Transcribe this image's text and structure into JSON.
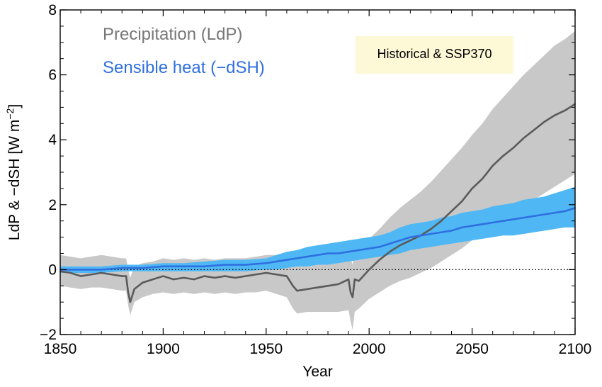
{
  "chart_data": {
    "type": "line",
    "title": "",
    "xlabel": "Year",
    "ylabel": "LdP & −dSH [W m⁻²]",
    "ylabel_parts": {
      "main": "LdP & −dSH [W m",
      "exponent": "−2",
      "close": "]"
    },
    "xlim": [
      1850,
      2100
    ],
    "ylim": [
      -2,
      8
    ],
    "x_ticks": [
      1850,
      1900,
      1950,
      2000,
      2050,
      2100
    ],
    "x_tick_labels": [
      "1850",
      "1900",
      "1950",
      "2000",
      "2050",
      "2100"
    ],
    "y_ticks": [
      -2,
      0,
      2,
      4,
      6,
      8
    ],
    "y_tick_labels": [
      "−2",
      "0",
      "2",
      "4",
      "6",
      "8"
    ],
    "grid": false,
    "reference_line": {
      "y": 0,
      "style": "dotted"
    },
    "annotation": "Historical & SSP370",
    "legend": [
      {
        "label": "Precipitation (LdP)",
        "color": "#777777"
      },
      {
        "label": "Sensible heat (−dSH)",
        "color": "#2f6fe0"
      }
    ],
    "series": [
      {
        "name": "Precipitation (LdP)",
        "line_color": "#5a5a5a",
        "band_color": "#c8c8c8",
        "x": [
          1850,
          1855,
          1860,
          1865,
          1870,
          1875,
          1880,
          1882,
          1883,
          1884,
          1886,
          1890,
          1895,
          1900,
          1905,
          1910,
          1915,
          1920,
          1925,
          1930,
          1935,
          1940,
          1945,
          1950,
          1955,
          1960,
          1963,
          1965,
          1970,
          1975,
          1980,
          1985,
          1990,
          1991,
          1992,
          1993,
          1995,
          2000,
          2005,
          2010,
          2015,
          2020,
          2025,
          2030,
          2035,
          2040,
          2045,
          2050,
          2055,
          2060,
          2065,
          2070,
          2075,
          2080,
          2085,
          2090,
          2095,
          2100
        ],
        "values": [
          -0.05,
          -0.1,
          -0.2,
          -0.15,
          -0.1,
          -0.15,
          -0.2,
          -0.2,
          -0.7,
          -1.0,
          -0.6,
          -0.4,
          -0.3,
          -0.2,
          -0.3,
          -0.25,
          -0.3,
          -0.2,
          -0.25,
          -0.2,
          -0.25,
          -0.2,
          -0.15,
          -0.1,
          -0.15,
          -0.2,
          -0.5,
          -0.65,
          -0.6,
          -0.55,
          -0.5,
          -0.45,
          -0.3,
          -0.7,
          -0.85,
          -0.3,
          -0.35,
          0.0,
          0.3,
          0.55,
          0.75,
          0.9,
          1.05,
          1.25,
          1.5,
          1.8,
          2.1,
          2.5,
          2.8,
          3.2,
          3.5,
          3.75,
          4.05,
          4.3,
          4.55,
          4.75,
          4.9,
          5.1
        ],
        "lower": [
          -0.5,
          -0.55,
          -0.6,
          -0.55,
          -0.55,
          -0.6,
          -0.65,
          -0.65,
          -1.1,
          -1.4,
          -1.0,
          -0.85,
          -0.75,
          -0.7,
          -0.75,
          -0.7,
          -0.75,
          -0.7,
          -0.75,
          -0.7,
          -0.75,
          -0.7,
          -0.7,
          -0.65,
          -0.75,
          -0.85,
          -1.2,
          -1.35,
          -1.3,
          -1.3,
          -1.3,
          -1.3,
          -1.25,
          -1.6,
          -1.85,
          -1.3,
          -1.2,
          -0.9,
          -0.7,
          -0.5,
          -0.35,
          -0.25,
          -0.1,
          0.05,
          0.25,
          0.45,
          0.65,
          0.9,
          1.1,
          1.35,
          1.55,
          1.75,
          1.95,
          2.15,
          2.35,
          2.55,
          2.75,
          2.95
        ],
        "upper": [
          0.45,
          0.4,
          0.35,
          0.4,
          0.45,
          0.4,
          0.35,
          0.35,
          0.0,
          -0.25,
          0.1,
          0.2,
          0.25,
          0.35,
          0.3,
          0.35,
          0.3,
          0.35,
          0.3,
          0.35,
          0.35,
          0.35,
          0.4,
          0.45,
          0.45,
          0.45,
          0.25,
          0.1,
          0.15,
          0.2,
          0.3,
          0.35,
          0.6,
          0.35,
          0.15,
          0.65,
          0.7,
          0.95,
          1.25,
          1.6,
          1.9,
          2.15,
          2.4,
          2.7,
          3.05,
          3.4,
          3.75,
          4.15,
          4.5,
          4.95,
          5.3,
          5.65,
          6.0,
          6.3,
          6.6,
          6.9,
          7.1,
          7.35
        ]
      },
      {
        "name": "Sensible heat (−dSH)",
        "line_color": "#2f6fe0",
        "band_color": "#4fb8f4",
        "x": [
          1850,
          1860,
          1870,
          1880,
          1890,
          1900,
          1910,
          1920,
          1930,
          1940,
          1950,
          1955,
          1960,
          1965,
          1970,
          1975,
          1980,
          1985,
          1990,
          1995,
          2000,
          2005,
          2010,
          2015,
          2020,
          2025,
          2030,
          2035,
          2040,
          2045,
          2050,
          2055,
          2060,
          2065,
          2070,
          2075,
          2080,
          2085,
          2090,
          2095,
          2100
        ],
        "values": [
          0.0,
          0.0,
          0.0,
          0.05,
          0.05,
          0.1,
          0.1,
          0.1,
          0.15,
          0.15,
          0.2,
          0.25,
          0.3,
          0.35,
          0.4,
          0.45,
          0.5,
          0.5,
          0.55,
          0.6,
          0.65,
          0.7,
          0.8,
          0.9,
          1.0,
          1.05,
          1.1,
          1.15,
          1.2,
          1.3,
          1.35,
          1.4,
          1.45,
          1.5,
          1.55,
          1.6,
          1.65,
          1.7,
          1.75,
          1.8,
          1.9
        ],
        "lower": [
          -0.1,
          -0.1,
          -0.1,
          -0.05,
          -0.05,
          -0.05,
          -0.05,
          -0.05,
          -0.05,
          -0.05,
          0.0,
          0.0,
          0.05,
          0.1,
          0.1,
          0.15,
          0.15,
          0.2,
          0.25,
          0.3,
          0.35,
          0.4,
          0.45,
          0.5,
          0.6,
          0.65,
          0.7,
          0.75,
          0.8,
          0.85,
          0.9,
          0.95,
          1.0,
          1.05,
          1.05,
          1.1,
          1.15,
          1.2,
          1.25,
          1.3,
          1.3
        ],
        "upper": [
          0.1,
          0.1,
          0.1,
          0.15,
          0.15,
          0.2,
          0.2,
          0.25,
          0.3,
          0.3,
          0.35,
          0.45,
          0.55,
          0.6,
          0.7,
          0.75,
          0.8,
          0.85,
          0.9,
          0.95,
          1.0,
          1.05,
          1.15,
          1.3,
          1.4,
          1.45,
          1.5,
          1.6,
          1.65,
          1.75,
          1.8,
          1.85,
          1.95,
          2.0,
          2.05,
          2.15,
          2.2,
          2.25,
          2.35,
          2.45,
          2.55
        ]
      }
    ]
  }
}
